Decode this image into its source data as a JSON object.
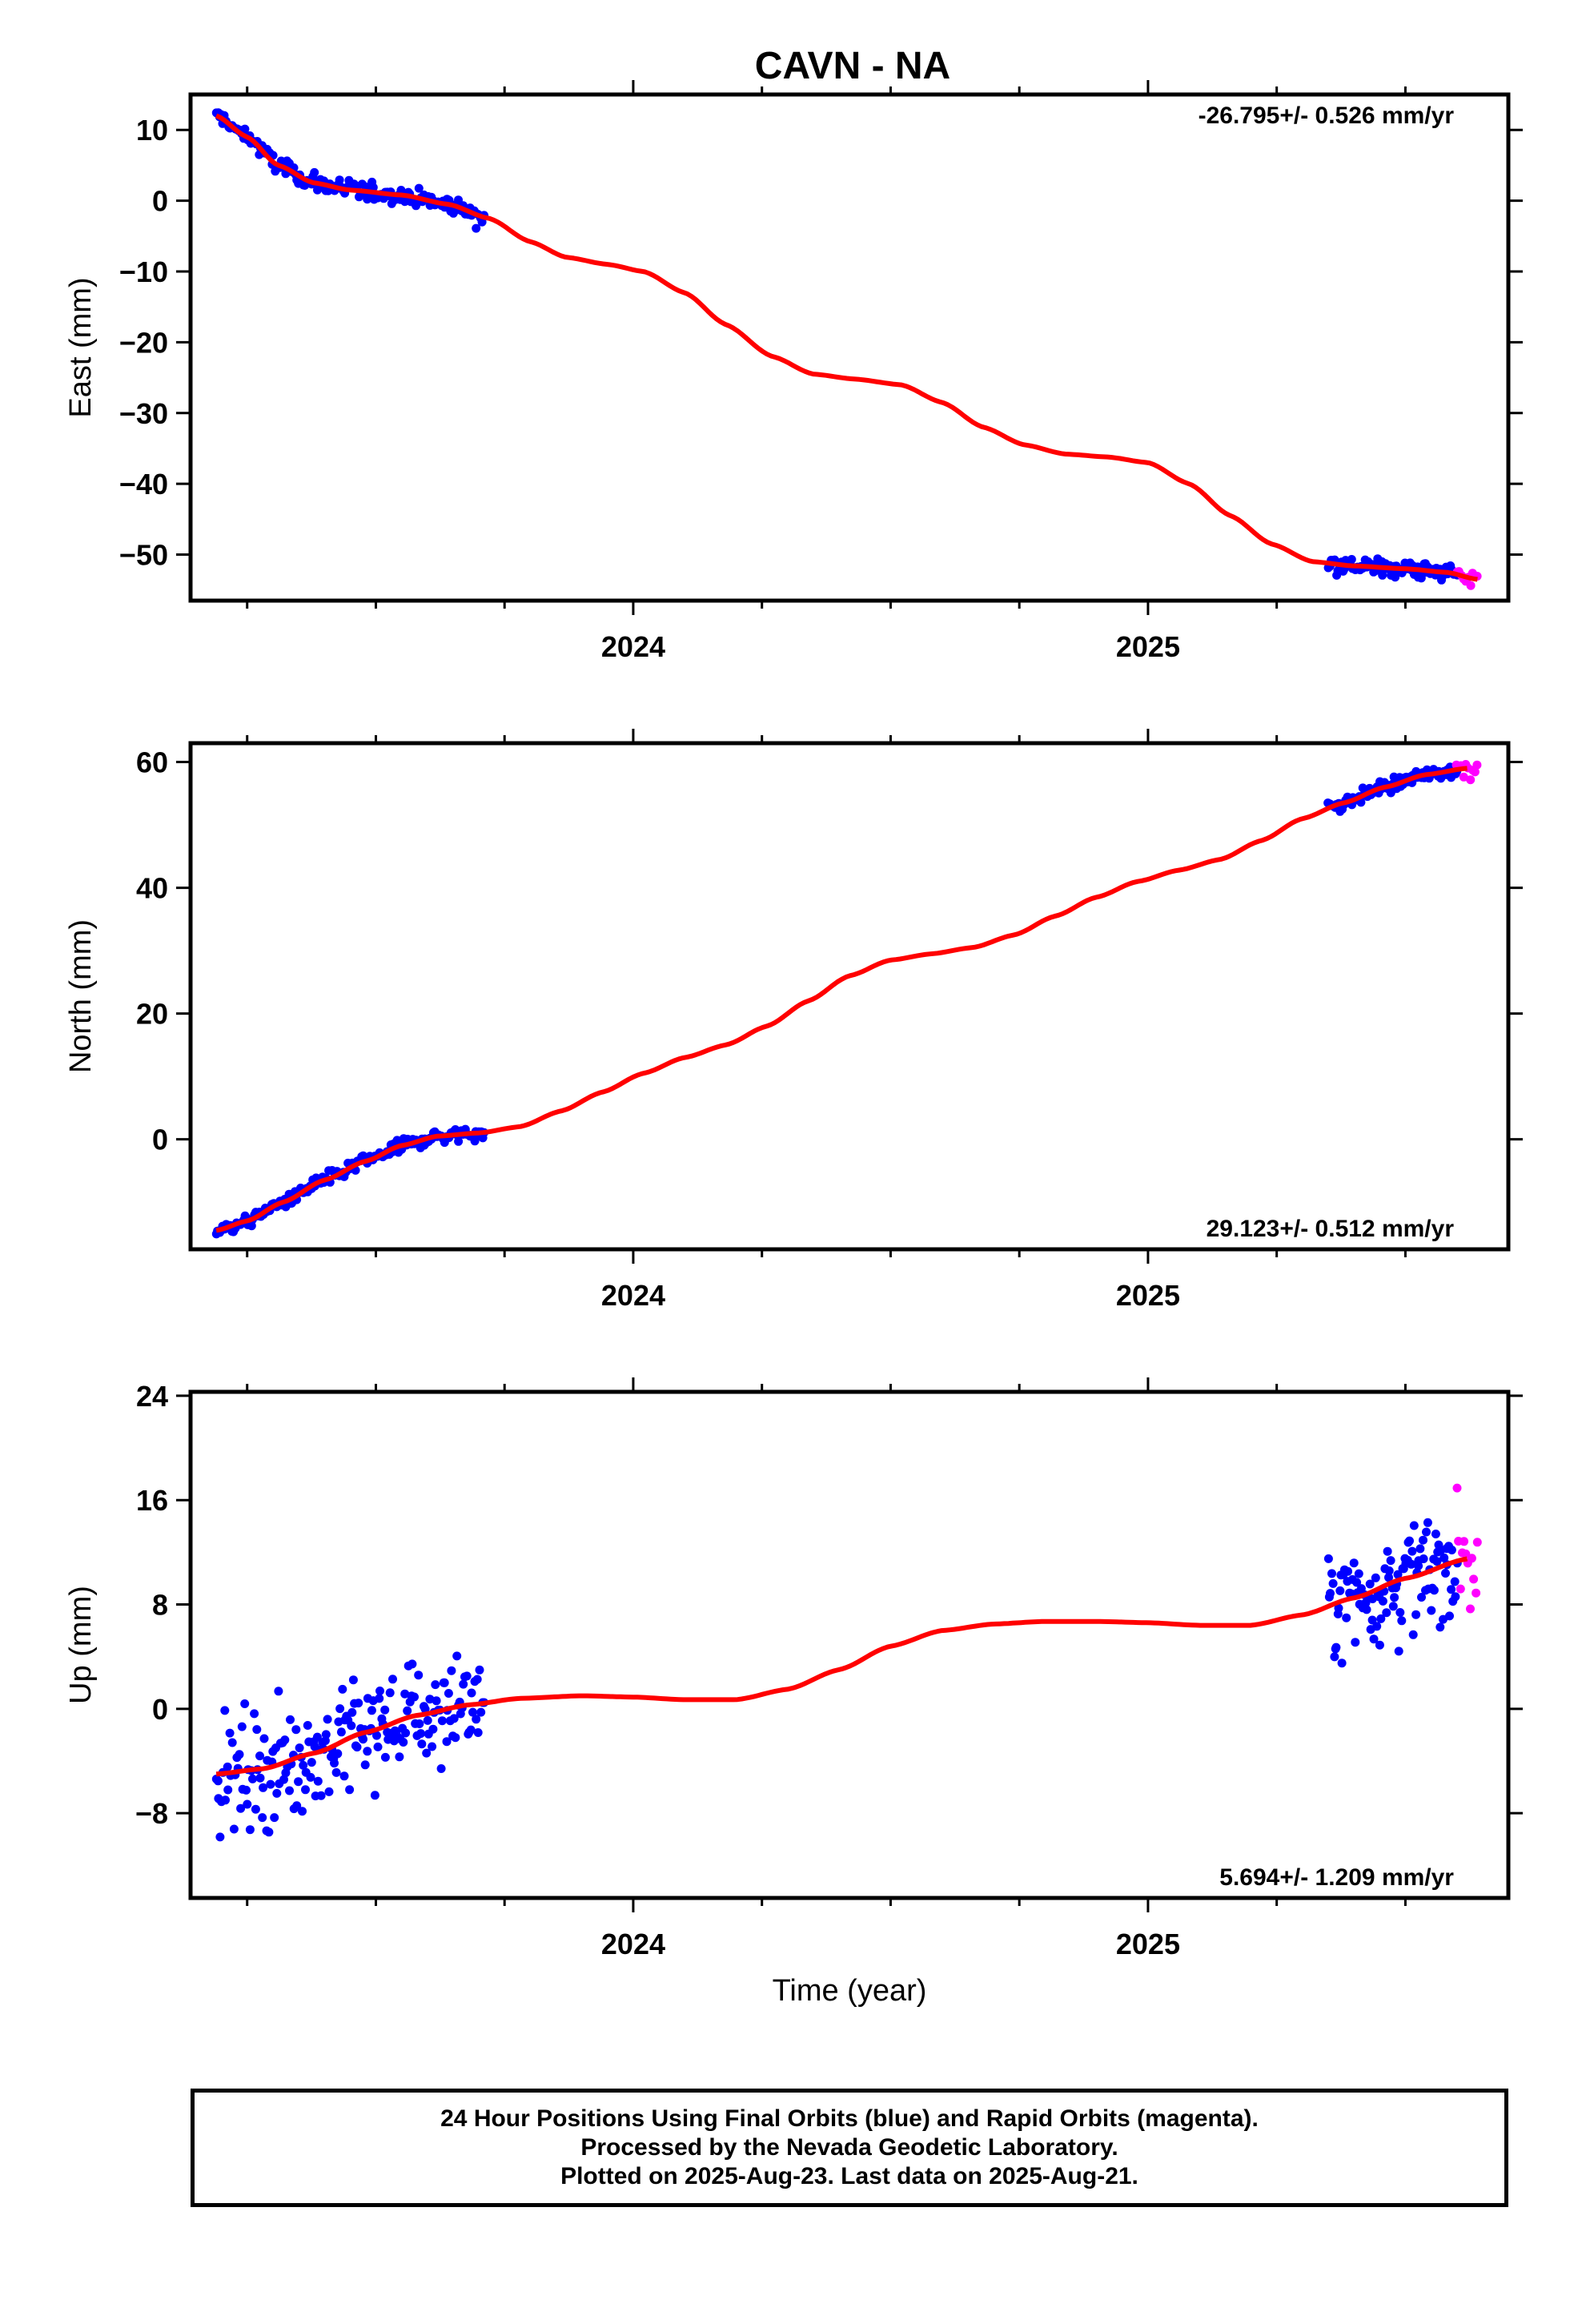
{
  "title": "CAVN - NA",
  "footer": {
    "line1": "24 Hour Positions Using Final Orbits (blue) and Rapid Orbits (magenta).",
    "line2": "Processed by the Nevada Geodetic Laboratory.",
    "line3": "Plotted on 2025-Aug-23. Last data on 2025-Aug-21."
  },
  "colors": {
    "final": "#0000ff",
    "rapid": "#ff00ff",
    "fit": "#ff0000",
    "frame": "#000000"
  },
  "chart_data": [
    {
      "type": "scatter",
      "id": "east",
      "ylabel": "East (mm)",
      "xlabel": "",
      "rate_label": "-26.795+/- 0.526 mm/yr",
      "rate_position": "top-right",
      "xlim": [
        2023.14,
        2025.7
      ],
      "ylim": [
        -56.5,
        15
      ],
      "yticks": [
        10,
        0,
        -10,
        -20,
        -30,
        -40,
        -50
      ],
      "ytick_labels": [
        "10",
        "0",
        "−10",
        "−20",
        "−30",
        "−40",
        "−50"
      ],
      "xticks": [
        2024,
        2025
      ],
      "xtick_labels": [
        "2024",
        "2025"
      ],
      "grid": false,
      "final_segments": [
        {
          "x0": 2023.19,
          "x1": 2023.71,
          "n": 170,
          "noise": 0.9
        },
        {
          "x0": 2025.35,
          "x1": 2025.6,
          "n": 95,
          "noise": 0.9
        }
      ],
      "rapid_segments": [
        {
          "x0": 2025.6,
          "x1": 2025.64,
          "n": 10,
          "noise": 0.9
        }
      ],
      "fit": {
        "x": [
          2023.19,
          2023.25,
          2023.31,
          2023.38,
          2023.45,
          2023.55,
          2023.64,
          2023.72,
          2023.8,
          2023.87,
          2023.95,
          2024.02,
          2024.1,
          2024.18,
          2024.27,
          2024.35,
          2024.43,
          2024.52,
          2024.6,
          2024.68,
          2024.76,
          2024.84,
          2024.92,
          2025.0,
          2025.08,
          2025.16,
          2025.24,
          2025.32,
          2025.4,
          2025.5,
          2025.58,
          2025.64
        ],
        "y": [
          12.0,
          9.0,
          5.0,
          2.5,
          1.5,
          0.8,
          -0.5,
          -2.5,
          -5.8,
          -8.0,
          -9.0,
          -10.0,
          -13.0,
          -17.5,
          -22.0,
          -24.5,
          -25.2,
          -26.0,
          -28.5,
          -32.0,
          -34.5,
          -35.8,
          -36.2,
          -37.0,
          -40.0,
          -44.5,
          -48.5,
          -51.0,
          -51.6,
          -52.0,
          -52.5,
          -53.5
        ]
      }
    },
    {
      "type": "scatter",
      "id": "north",
      "ylabel": "North (mm)",
      "xlabel": "",
      "rate_label": "29.123+/- 0.512 mm/yr",
      "rate_position": "bottom-right",
      "xlim": [
        2023.14,
        2025.7
      ],
      "ylim": [
        -17.5,
        63
      ],
      "yticks": [
        60,
        40,
        20,
        0
      ],
      "ytick_labels": [
        "60",
        "40",
        "20",
        "0"
      ],
      "xticks": [
        2024,
        2025
      ],
      "xtick_labels": [
        "2024",
        "2025"
      ],
      "grid": false,
      "final_segments": [
        {
          "x0": 2023.19,
          "x1": 2023.71,
          "n": 170,
          "noise": 0.8
        },
        {
          "x0": 2025.35,
          "x1": 2025.6,
          "n": 95,
          "noise": 0.8
        }
      ],
      "rapid_segments": [
        {
          "x0": 2025.6,
          "x1": 2025.64,
          "n": 10,
          "noise": 1.0
        }
      ],
      "fit": {
        "x": [
          2023.19,
          2023.25,
          2023.32,
          2023.4,
          2023.48,
          2023.55,
          2023.62,
          2023.7,
          2023.78,
          2023.86,
          2023.94,
          2024.02,
          2024.1,
          2024.18,
          2024.26,
          2024.34,
          2024.42,
          2024.5,
          2024.58,
          2024.66,
          2024.74,
          2024.82,
          2024.9,
          2024.98,
          2025.06,
          2025.14,
          2025.22,
          2025.3,
          2025.38,
          2025.46,
          2025.54,
          2025.62
        ],
        "y": [
          -14.5,
          -13.0,
          -10.0,
          -6.5,
          -3.5,
          -1.0,
          0.5,
          1.0,
          2.0,
          4.5,
          7.5,
          10.5,
          13.0,
          15.0,
          18.0,
          22.0,
          26.0,
          28.5,
          29.5,
          30.5,
          32.5,
          35.5,
          38.5,
          41.0,
          42.8,
          44.5,
          47.5,
          51.0,
          53.5,
          56.0,
          58.0,
          59.0
        ]
      }
    },
    {
      "type": "scatter",
      "id": "up",
      "ylabel": "Up (mm)",
      "xlabel": "Time (year)",
      "rate_label": "5.694+/- 1.209 mm/yr",
      "rate_position": "bottom-right",
      "xlim": [
        2023.14,
        2025.7
      ],
      "ylim": [
        -14.5,
        24.3
      ],
      "yticks": [
        24,
        16,
        8,
        0,
        -8
      ],
      "ytick_labels": [
        "24",
        "16",
        "8",
        "0",
        "−8"
      ],
      "xticks": [
        2024,
        2025
      ],
      "xtick_labels": [
        "2024",
        "2025"
      ],
      "grid": false,
      "final_segments": [
        {
          "x0": 2023.19,
          "x1": 2023.71,
          "n": 200,
          "noise": 3.0
        },
        {
          "x0": 2025.35,
          "x1": 2025.6,
          "n": 110,
          "noise": 3.0
        }
      ],
      "rapid_segments": [
        {
          "x0": 2025.6,
          "x1": 2025.64,
          "n": 12,
          "noise": 3.5
        }
      ],
      "fit": {
        "x": [
          2023.19,
          2023.28,
          2023.38,
          2023.48,
          2023.58,
          2023.68,
          2023.78,
          2023.9,
          2024.0,
          2024.1,
          2024.2,
          2024.3,
          2024.4,
          2024.5,
          2024.6,
          2024.7,
          2024.8,
          2024.9,
          2025.0,
          2025.1,
          2025.2,
          2025.3,
          2025.4,
          2025.5,
          2025.62
        ],
        "y": [
          -5.0,
          -4.6,
          -3.4,
          -1.8,
          -0.5,
          0.3,
          0.8,
          1.0,
          0.9,
          0.7,
          0.7,
          1.5,
          3.0,
          4.8,
          6.0,
          6.5,
          6.7,
          6.7,
          6.6,
          6.4,
          6.4,
          7.2,
          8.5,
          10.0,
          11.5
        ]
      }
    }
  ]
}
